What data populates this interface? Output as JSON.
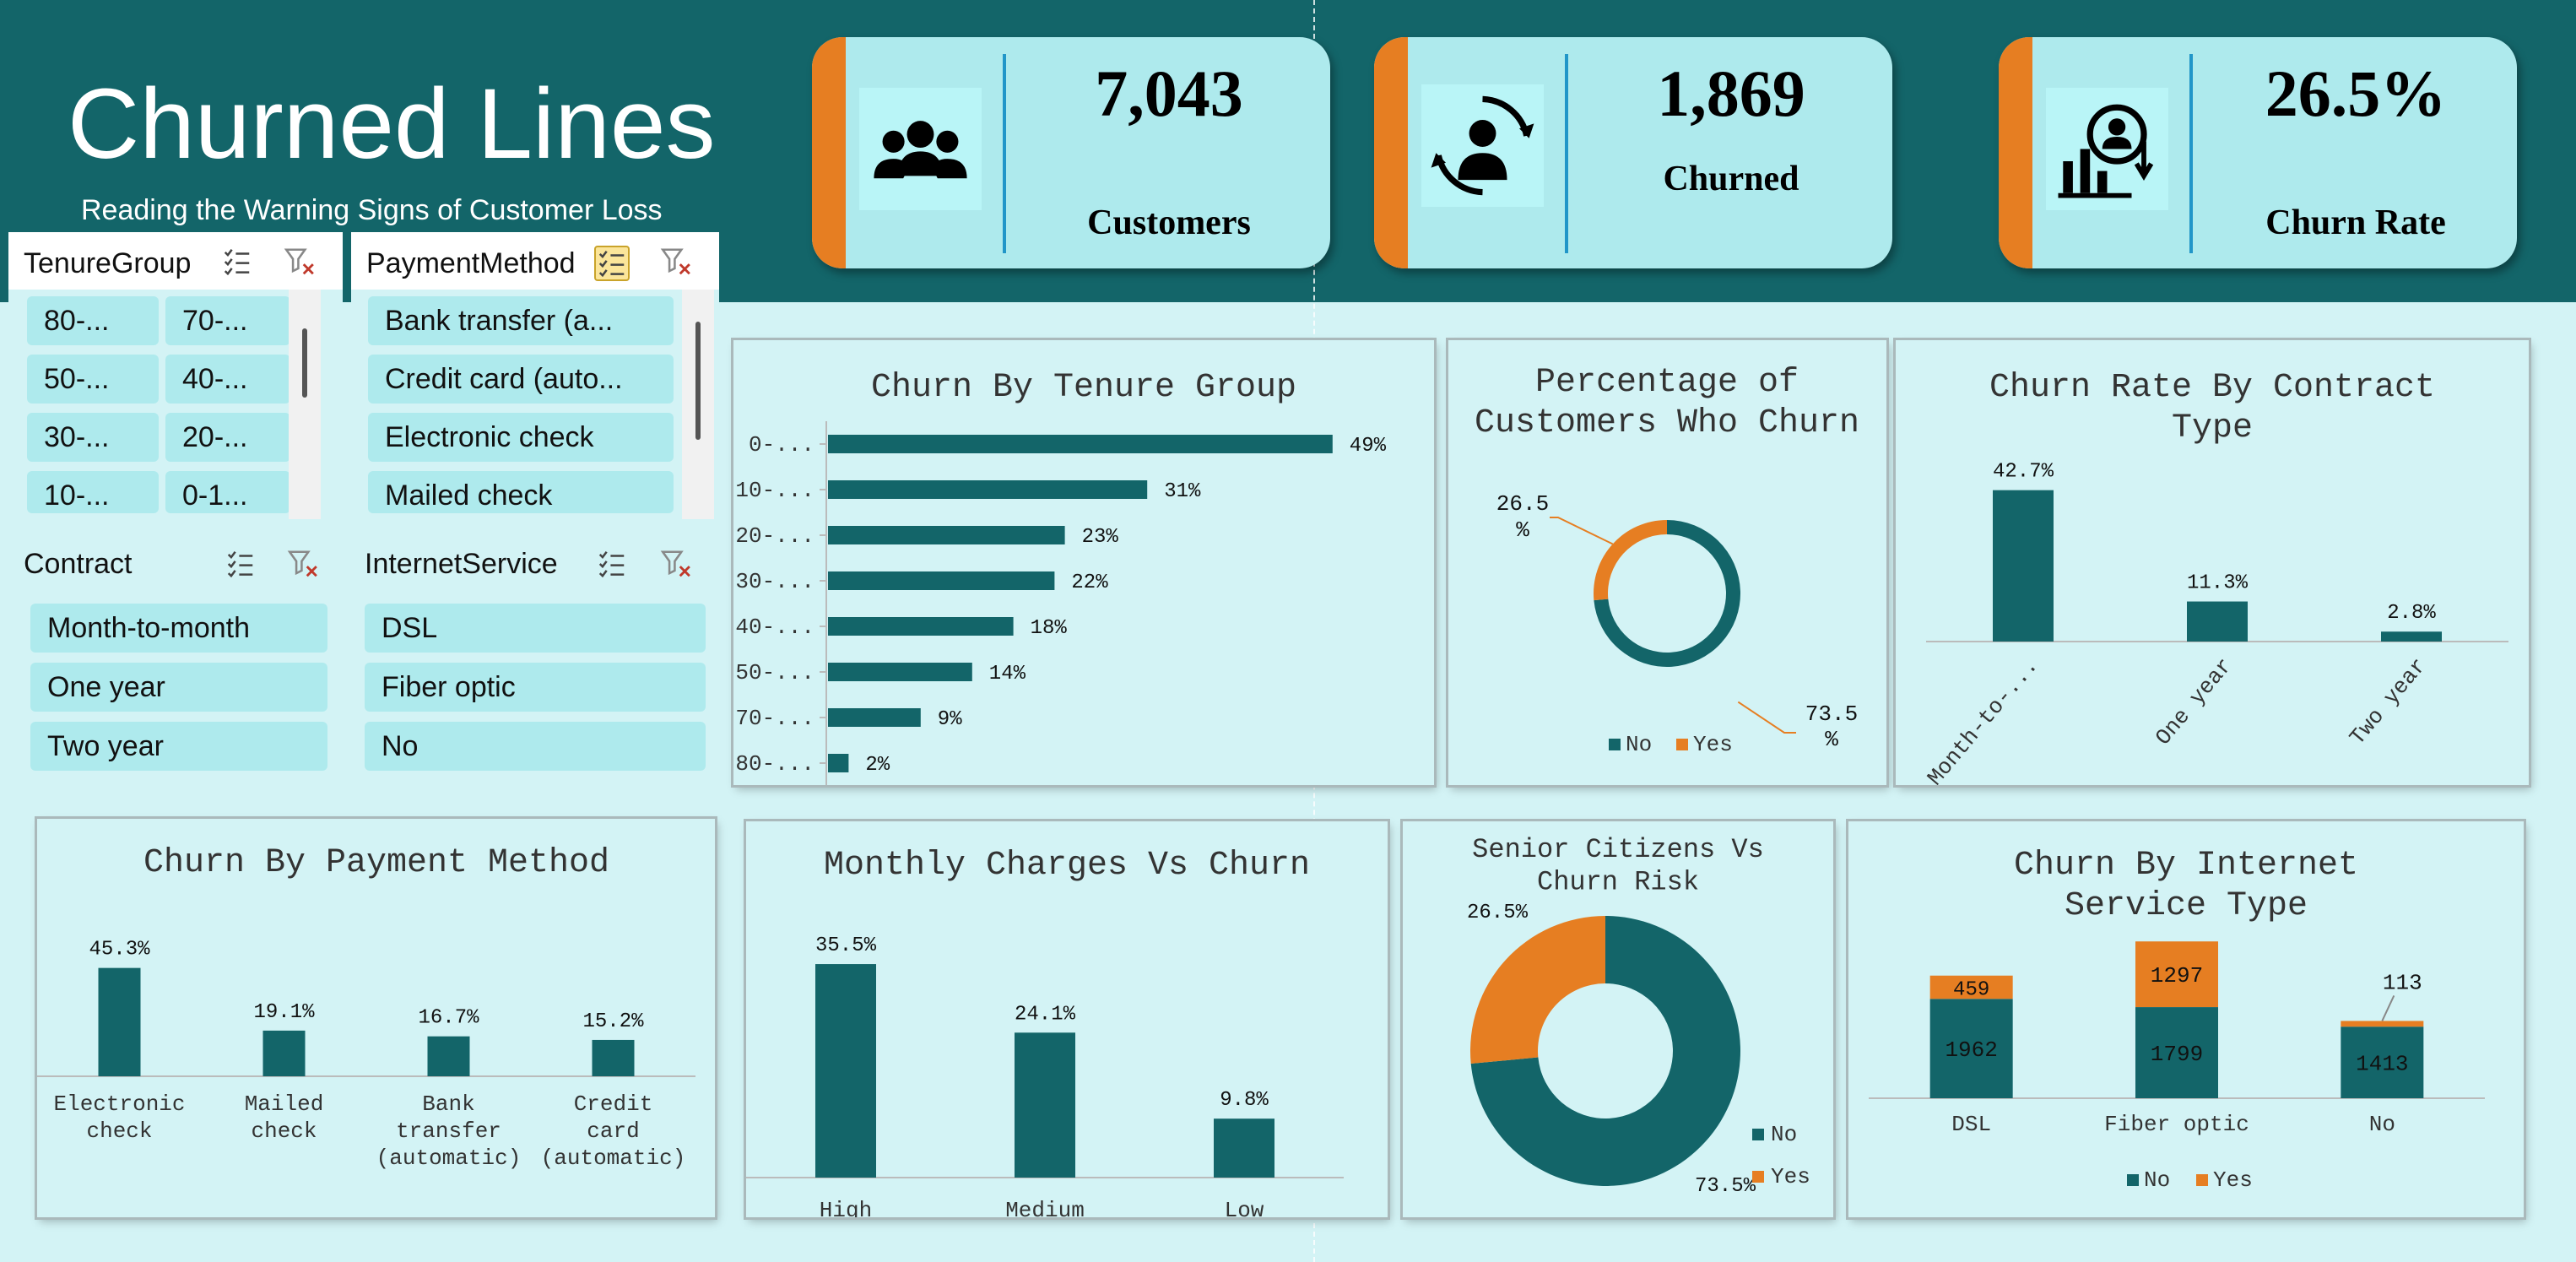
{
  "header": {
    "title": "Churned Lines",
    "subtitle": "Reading the Warning Signs of Customer Loss"
  },
  "kpis": [
    {
      "value": "7,043",
      "label": "Customers",
      "icon": "customers-group-icon"
    },
    {
      "value": "1,869",
      "label": "Churned",
      "icon": "churned-user-icon"
    },
    {
      "value": "26.5%",
      "label": "Churn Rate",
      "icon": "churn-rate-icon"
    }
  ],
  "slicers": {
    "tenure": {
      "name": "TenureGroup",
      "items": [
        "80-...",
        "70-...",
        "50-...",
        "40-...",
        "30-...",
        "20-...",
        "10-...",
        "0-1..."
      ]
    },
    "payment": {
      "name": "PaymentMethod",
      "items": [
        "Bank transfer (a...",
        "Credit card (auto...",
        "Electronic check",
        "Mailed check"
      ]
    },
    "contract": {
      "name": "Contract",
      "items": [
        "Month-to-month",
        "One year",
        "Two year"
      ]
    },
    "internet": {
      "name": "InternetService",
      "items": [
        "DSL",
        "Fiber optic",
        "No"
      ]
    }
  },
  "colors": {
    "teal": "#136569",
    "orange": "#e67e22",
    "bg": "#d3f3f5",
    "kpi": "#aeeaed"
  },
  "chart_data": [
    {
      "id": "tenure",
      "type": "bar",
      "orientation": "horizontal",
      "title": "Churn By Tenure Group",
      "categories": [
        "0-...",
        "10-...",
        "20-...",
        "30-...",
        "40-...",
        "50-...",
        "70-...",
        "80-..."
      ],
      "values": [
        49,
        31,
        23,
        22,
        18,
        14,
        9,
        2
      ],
      "labels": [
        "49%",
        "31%",
        "23%",
        "22%",
        "18%",
        "14%",
        "9%",
        "2%"
      ],
      "xlim": [
        0,
        50
      ]
    },
    {
      "id": "pct",
      "type": "pie",
      "subtype": "donut",
      "title": "Percentage of Customers Who Churn",
      "categories": [
        "No",
        "Yes"
      ],
      "values": [
        73.5,
        26.5
      ],
      "labels": [
        "73.5 %",
        "26.5 %"
      ],
      "legend": "bottom"
    },
    {
      "id": "contract",
      "type": "bar",
      "title": "Churn Rate By Contract Type",
      "categories": [
        "Month-to-...",
        "One year",
        "Two year"
      ],
      "values": [
        42.7,
        11.3,
        2.8
      ],
      "labels": [
        "42.7%",
        "11.3%",
        "2.8%"
      ],
      "ylim": [
        0,
        50
      ]
    },
    {
      "id": "payment",
      "type": "bar",
      "title": "Churn By Payment Method",
      "categories": [
        "Electronic check",
        "Mailed check",
        "Bank transfer (automatic)",
        "Credit card (automatic)"
      ],
      "values": [
        45.3,
        19.1,
        16.7,
        15.2
      ],
      "labels": [
        "45.3%",
        "19.1%",
        "16.7%",
        "15.2%"
      ],
      "ylim": [
        0,
        60
      ]
    },
    {
      "id": "monthly",
      "type": "bar",
      "title": "Monthly Charges Vs Churn",
      "categories": [
        "High",
        "Medium",
        "Low"
      ],
      "values": [
        35.5,
        24.1,
        9.8
      ],
      "labels": [
        "35.5%",
        "24.1%",
        "9.8%"
      ],
      "ylim": [
        0,
        40
      ]
    },
    {
      "id": "senior",
      "type": "pie",
      "subtype": "donut",
      "title": "Senior Citizens Vs Churn Risk",
      "categories": [
        "No",
        "Yes"
      ],
      "values": [
        73.5,
        26.5
      ],
      "labels": [
        "73.5%",
        "26.5%"
      ],
      "legend": "right"
    },
    {
      "id": "internet",
      "type": "bar",
      "subtype": "stacked",
      "title": "Churn By Internet Service Type",
      "categories": [
        "DSL",
        "Fiber optic",
        "No"
      ],
      "series": [
        {
          "name": "No",
          "values": [
            1962,
            1799,
            1413
          ]
        },
        {
          "name": "Yes",
          "values": [
            459,
            1297,
            113
          ]
        }
      ],
      "ylim": [
        0,
        3500
      ],
      "legend": "bottom"
    }
  ]
}
